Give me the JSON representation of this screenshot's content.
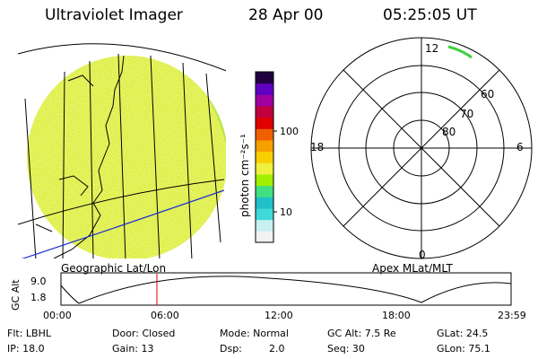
{
  "header": {
    "title": "Ultraviolet Imager",
    "date": "28 Apr 00",
    "time": "05:25:05 UT"
  },
  "colorbar": {
    "unit_label": "photon cm⁻²s⁻¹",
    "ticks": [
      "100",
      "10"
    ],
    "colors": [
      "#f2f2f2",
      "#c8f0f0",
      "#40d8d8",
      "#20c0c8",
      "#40e080",
      "#a0f000",
      "#f0f040",
      "#f8d000",
      "#f8a000",
      "#f06000",
      "#e00000",
      "#c00040",
      "#a000a0",
      "#6000c0",
      "#200040"
    ]
  },
  "geo_panel": {
    "label": "Geographic Lat/Lon",
    "accent_fill": "#f0f040"
  },
  "polar_panel": {
    "label": "Apex MLat/MLT",
    "mlt_top": "12",
    "mlt_left": "18",
    "mlt_right": "6",
    "mlt_bottom": "0",
    "rings": [
      "60",
      "70",
      "80"
    ]
  },
  "altitude_plot": {
    "ylabel": "GC Alt",
    "yticks": [
      "9.0",
      "1.8"
    ],
    "xticks": [
      "00:00",
      "06:00",
      "12:00",
      "18:00",
      "23:59"
    ],
    "cursor_color": "#e00000"
  },
  "info": {
    "flt": "Flt: LBHL",
    "ip": "IP: 18.0",
    "door": "Door: Closed",
    "gain": "Gain: 13",
    "mode": "Mode: Normal",
    "dsp_label": "Dsp:",
    "dsp_value": "2.0",
    "gcalt": "GC Alt: 7.5 Re",
    "seq": "Seq: 30",
    "glat": "GLat: 24.5",
    "glon": "GLon: 75.1"
  }
}
